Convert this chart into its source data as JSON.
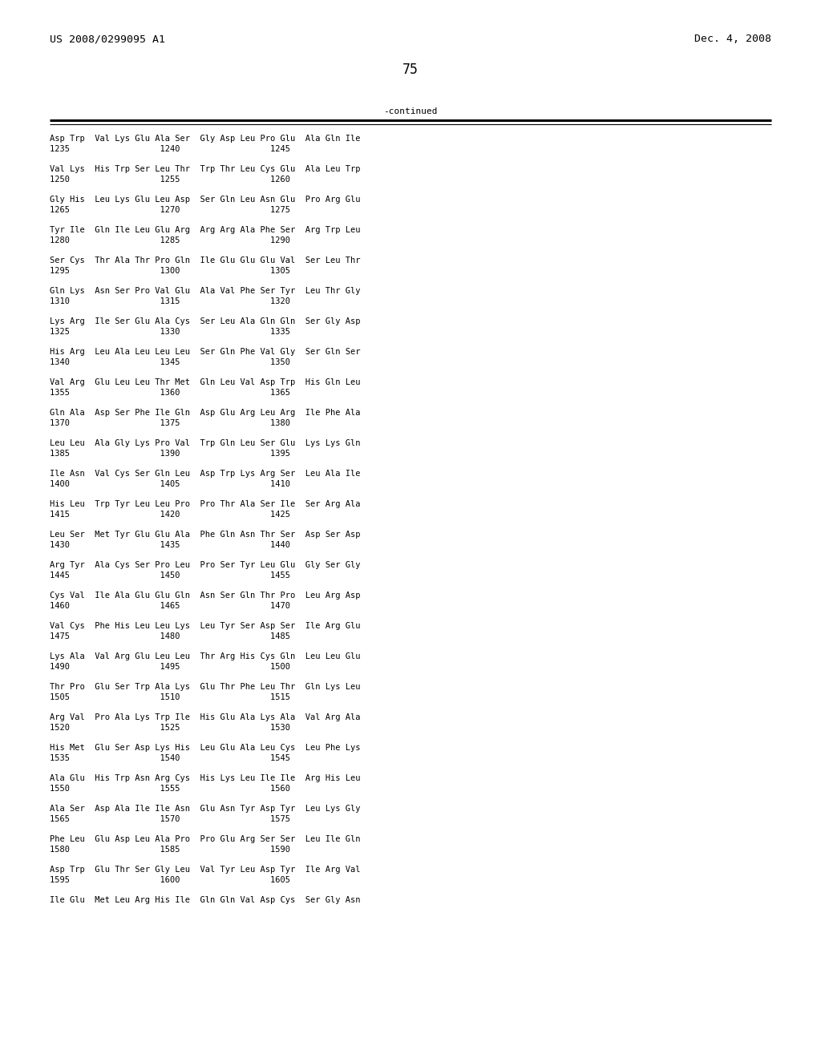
{
  "header_left": "US 2008/0299095 A1",
  "header_right": "Dec. 4, 2008",
  "page_number": "75",
  "continued_text": "-continued",
  "background_color": "#ffffff",
  "text_color": "#000000",
  "font_size": 7.5,
  "header_font_size": 9.5,
  "page_num_font_size": 12,
  "rows": [
    {
      "aa": "Asp Trp  Val Lys Glu Ala Ser  Gly Asp Leu Pro Glu  Ala Gln Ile",
      "num": "1235                  1240                  1245"
    },
    {
      "aa": "Val Lys  His Trp Ser Leu Thr  Trp Thr Leu Cys Glu  Ala Leu Trp",
      "num": "1250                  1255                  1260"
    },
    {
      "aa": "Gly His  Leu Lys Glu Leu Asp  Ser Gln Leu Asn Glu  Pro Arg Glu",
      "num": "1265                  1270                  1275"
    },
    {
      "aa": "Tyr Ile  Gln Ile Leu Glu Arg  Arg Arg Ala Phe Ser  Arg Trp Leu",
      "num": "1280                  1285                  1290"
    },
    {
      "aa": "Ser Cys  Thr Ala Thr Pro Gln  Ile Glu Glu Glu Val  Ser Leu Thr",
      "num": "1295                  1300                  1305"
    },
    {
      "aa": "Gln Lys  Asn Ser Pro Val Glu  Ala Val Phe Ser Tyr  Leu Thr Gly",
      "num": "1310                  1315                  1320"
    },
    {
      "aa": "Lys Arg  Ile Ser Glu Ala Cys  Ser Leu Ala Gln Gln  Ser Gly Asp",
      "num": "1325                  1330                  1335"
    },
    {
      "aa": "His Arg  Leu Ala Leu Leu Leu  Ser Gln Phe Val Gly  Ser Gln Ser",
      "num": "1340                  1345                  1350"
    },
    {
      "aa": "Val Arg  Glu Leu Leu Thr Met  Gln Leu Val Asp Trp  His Gln Leu",
      "num": "1355                  1360                  1365"
    },
    {
      "aa": "Gln Ala  Asp Ser Phe Ile Gln  Asp Glu Arg Leu Arg  Ile Phe Ala",
      "num": "1370                  1375                  1380"
    },
    {
      "aa": "Leu Leu  Ala Gly Lys Pro Val  Trp Gln Leu Ser Glu  Lys Lys Gln",
      "num": "1385                  1390                  1395"
    },
    {
      "aa": "Ile Asn  Val Cys Ser Gln Leu  Asp Trp Lys Arg Ser  Leu Ala Ile",
      "num": "1400                  1405                  1410"
    },
    {
      "aa": "His Leu  Trp Tyr Leu Leu Pro  Pro Thr Ala Ser Ile  Ser Arg Ala",
      "num": "1415                  1420                  1425"
    },
    {
      "aa": "Leu Ser  Met Tyr Glu Glu Ala  Phe Gln Asn Thr Ser  Asp Ser Asp",
      "num": "1430                  1435                  1440"
    },
    {
      "aa": "Arg Tyr  Ala Cys Ser Pro Leu  Pro Ser Tyr Leu Glu  Gly Ser Gly",
      "num": "1445                  1450                  1455"
    },
    {
      "aa": "Cys Val  Ile Ala Glu Glu Gln  Asn Ser Gln Thr Pro  Leu Arg Asp",
      "num": "1460                  1465                  1470"
    },
    {
      "aa": "Val Cys  Phe His Leu Leu Lys  Leu Tyr Ser Asp Ser  Ile Arg Glu",
      "num": "1475                  1480                  1485"
    },
    {
      "aa": "Lys Ala  Val Arg Glu Leu Leu  Thr Arg His Cys Gln  Leu Leu Glu",
      "num": "1490                  1495                  1500"
    },
    {
      "aa": "Thr Pro  Glu Ser Trp Ala Lys  Glu Thr Phe Leu Thr  Gln Lys Leu",
      "num": "1505                  1510                  1515"
    },
    {
      "aa": "Arg Val  Pro Ala Lys Trp Ile  His Glu Ala Lys Ala  Val Arg Ala",
      "num": "1520                  1525                  1530"
    },
    {
      "aa": "His Met  Glu Ser Asp Lys His  Leu Glu Ala Leu Cys  Leu Phe Lys",
      "num": "1535                  1540                  1545"
    },
    {
      "aa": "Ala Glu  His Trp Asn Arg Cys  His Lys Leu Ile Ile  Arg His Leu",
      "num": "1550                  1555                  1560"
    },
    {
      "aa": "Ala Ser  Asp Ala Ile Ile Asn  Glu Asn Tyr Asp Tyr  Leu Lys Gly",
      "num": "1565                  1570                  1575"
    },
    {
      "aa": "Phe Leu  Glu Asp Leu Ala Pro  Pro Glu Arg Ser Ser  Leu Ile Gln",
      "num": "1580                  1585                  1590"
    },
    {
      "aa": "Asp Trp  Glu Thr Ser Gly Leu  Val Tyr Leu Asp Tyr  Ile Arg Val",
      "num": "1595                  1600                  1605"
    },
    {
      "aa": "Ile Glu  Met Leu Arg His Ile  Gln Gln Val Asp Cys  Ser Gly Asn",
      "num": ""
    }
  ]
}
